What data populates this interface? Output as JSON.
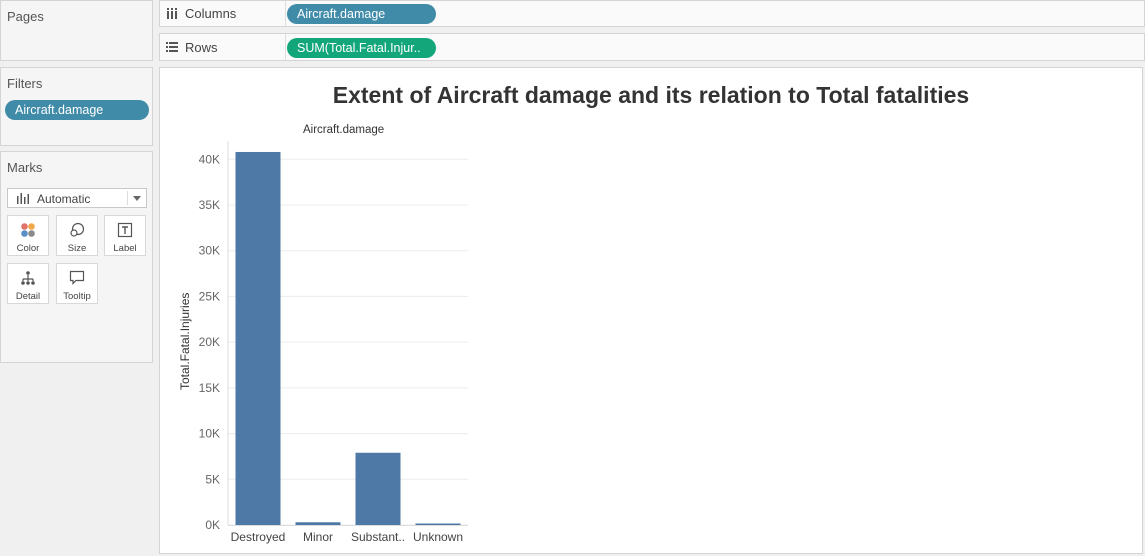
{
  "pages": {
    "title": "Pages"
  },
  "filters": {
    "title": "Filters",
    "pills": [
      {
        "label": "Aircraft.damage"
      }
    ]
  },
  "marks": {
    "title": "Marks",
    "type_value": "Automatic",
    "buttons": [
      {
        "label": "Color",
        "icon": "color-icon"
      },
      {
        "label": "Size",
        "icon": "size-icon"
      },
      {
        "label": "Label",
        "icon": "label-icon"
      },
      {
        "label": "Detail",
        "icon": "detail-icon"
      },
      {
        "label": "Tooltip",
        "icon": "tooltip-icon"
      }
    ]
  },
  "shelves": {
    "columns": {
      "label": "Columns",
      "pill": "Aircraft.damage"
    },
    "rows": {
      "label": "Rows",
      "pill": "SUM(Total.Fatal.Injur.."
    }
  },
  "colors": {
    "bar": "#4e79a7",
    "dimension_pill": "#3f8ba8",
    "measure_pill": "#12a67a"
  },
  "chart_data": {
    "type": "bar",
    "title": "Extent of Aircraft damage and its relation to Total fatalities",
    "column_header": "Aircraft.damage",
    "ylabel": "Total.Fatal.Injuries",
    "categories": [
      "Destroyed",
      "Minor",
      "Substant..",
      "Unknown"
    ],
    "values": [
      40800,
      300,
      7900,
      100
    ],
    "ylim": [
      0,
      42000
    ],
    "yticks": [
      0,
      5000,
      10000,
      15000,
      20000,
      25000,
      30000,
      35000,
      40000
    ],
    "ytick_labels": [
      "0K",
      "5K",
      "10K",
      "15K",
      "20K",
      "25K",
      "30K",
      "35K",
      "40K"
    ],
    "grid": true
  }
}
